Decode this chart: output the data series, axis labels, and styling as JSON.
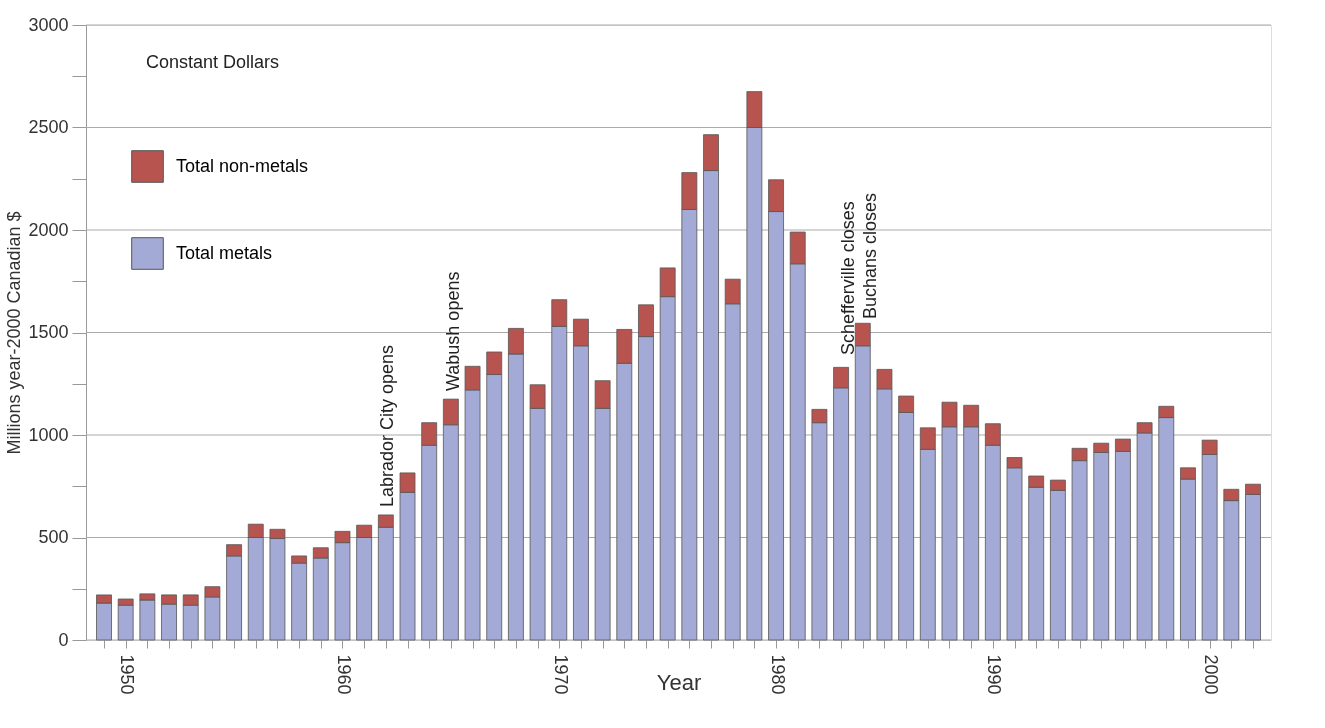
{
  "chart_data": {
    "type": "bar",
    "stacked": true,
    "xlabel": "Year",
    "ylabel": "Millions year-2000 Canadian $",
    "x": [
      1949,
      1950,
      1951,
      1952,
      1953,
      1954,
      1955,
      1956,
      1957,
      1958,
      1959,
      1960,
      1961,
      1962,
      1963,
      1964,
      1965,
      1966,
      1967,
      1968,
      1969,
      1970,
      1971,
      1972,
      1973,
      1974,
      1975,
      1976,
      1977,
      1978,
      1979,
      1980,
      1981,
      1982,
      1983,
      1984,
      1985,
      1986,
      1987,
      1988,
      1989,
      1990,
      1991,
      1992,
      1993,
      1994,
      1995,
      1996,
      1997,
      1998,
      1999,
      2000,
      2001,
      2002
    ],
    "series": [
      {
        "name": "Total metals",
        "color": "#a4aad6",
        "values": [
          180,
          170,
          195,
          175,
          170,
          210,
          410,
          500,
          495,
          375,
          400,
          475,
          500,
          550,
          720,
          950,
          1050,
          1220,
          1295,
          1395,
          1130,
          1530,
          1435,
          1130,
          1350,
          1480,
          1675,
          2100,
          2290,
          1640,
          2500,
          2090,
          1835,
          1060,
          1230,
          1435,
          1225,
          1110,
          930,
          1040,
          1040,
          950,
          840,
          745,
          730,
          875,
          915,
          920,
          1010,
          1085,
          785,
          905,
          680,
          710
        ]
      },
      {
        "name": "Total non-metals",
        "color": "#b85450",
        "values": [
          40,
          30,
          30,
          45,
          50,
          50,
          55,
          65,
          45,
          35,
          50,
          55,
          60,
          60,
          95,
          110,
          125,
          115,
          110,
          125,
          115,
          130,
          130,
          135,
          165,
          155,
          140,
          180,
          175,
          120,
          175,
          155,
          155,
          65,
          100,
          110,
          95,
          80,
          105,
          120,
          105,
          105,
          50,
          55,
          50,
          60,
          45,
          60,
          50,
          55,
          55,
          70,
          55,
          50
        ]
      }
    ],
    "xlim": [
      1948.4,
      2002.6
    ],
    "xticks": [
      {
        "value": 1949,
        "label": null
      },
      1950,
      {
        "value": 1951,
        "label": null
      },
      {
        "value": 1952,
        "label": null
      },
      {
        "value": 1953,
        "label": null
      },
      {
        "value": 1954,
        "label": null
      },
      {
        "value": 1955,
        "label": null
      },
      {
        "value": 1956,
        "label": null
      },
      {
        "value": 1957,
        "label": null
      },
      {
        "value": 1958,
        "label": null
      },
      {
        "value": 1959,
        "label": null
      },
      1960,
      {
        "value": 1961,
        "label": null
      },
      {
        "value": 1962,
        "label": null
      },
      {
        "value": 1963,
        "label": null
      },
      {
        "value": 1964,
        "label": null
      },
      {
        "value": 1965,
        "label": null
      },
      {
        "value": 1966,
        "label": null
      },
      {
        "value": 1967,
        "label": null
      },
      {
        "value": 1968,
        "label": null
      },
      {
        "value": 1969,
        "label": null
      },
      1970,
      {
        "value": 1971,
        "label": null
      },
      {
        "value": 1972,
        "label": null
      },
      {
        "value": 1973,
        "label": null
      },
      {
        "value": 1974,
        "label": null
      },
      {
        "value": 1975,
        "label": null
      },
      {
        "value": 1976,
        "label": null
      },
      {
        "value": 1977,
        "label": null
      },
      {
        "value": 1978,
        "label": null
      },
      {
        "value": 1979,
        "label": null
      },
      1980,
      {
        "value": 1981,
        "label": null
      },
      {
        "value": 1982,
        "label": null
      },
      {
        "value": 1983,
        "label": null
      },
      {
        "value": 1984,
        "label": null
      },
      {
        "value": 1985,
        "label": null
      },
      {
        "value": 1986,
        "label": null
      },
      {
        "value": 1987,
        "label": null
      },
      {
        "value": 1988,
        "label": null
      },
      {
        "value": 1989,
        "label": null
      },
      1990,
      {
        "value": 1991,
        "label": null
      },
      {
        "value": 1992,
        "label": null
      },
      {
        "value": 1993,
        "label": null
      },
      {
        "value": 1994,
        "label": null
      },
      {
        "value": 1995,
        "label": null
      },
      {
        "value": 1996,
        "label": null
      },
      {
        "value": 1997,
        "label": null
      },
      {
        "value": 1998,
        "label": null
      },
      {
        "value": 1999,
        "label": null
      },
      2000,
      {
        "value": 2001,
        "label": null
      },
      {
        "value": 2002,
        "label": null
      }
    ],
    "ylim": [
      0,
      3000
    ],
    "yticks": [
      0,
      {
        "value": 250,
        "label": null
      },
      500,
      {
        "value": 750,
        "label": null
      },
      1000,
      {
        "value": 1250,
        "label": null
      },
      1500,
      {
        "value": 1750,
        "label": null
      },
      2000,
      {
        "value": 2250,
        "label": null
      },
      2500,
      {
        "value": 2750,
        "label": null
      },
      3000
    ],
    "grid": "y",
    "legend": "top left",
    "annotations": [
      "Constant Dollars",
      "Labrador City opens",
      "Wabush opens",
      "Schefferville closes",
      "Buchans closes"
    ]
  }
}
